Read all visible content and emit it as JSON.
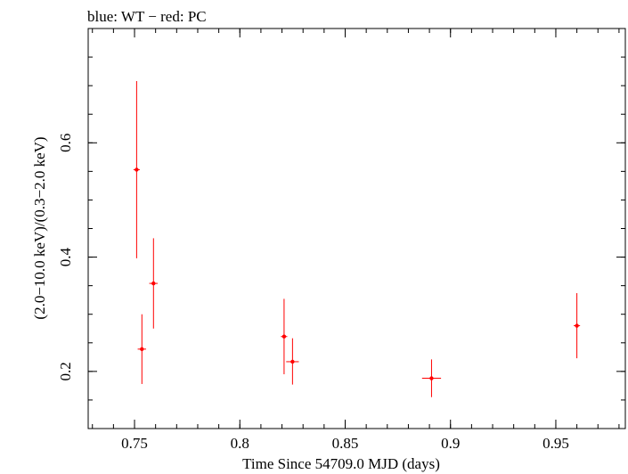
{
  "chart_data": {
    "type": "scatter",
    "title": "blue: WT − red: PC",
    "xlabel": "Time Since 54709.0 MJD (days)",
    "ylabel": "(2.0−10.0 keV)/(0.3−2.0 keV)",
    "xlim": [
      0.728,
      0.983
    ],
    "ylim": [
      0.1,
      0.8
    ],
    "x_ticks": [
      {
        "value": 0.75,
        "label": "0.75"
      },
      {
        "value": 0.8,
        "label": "0.8"
      },
      {
        "value": 0.85,
        "label": "0.85"
      },
      {
        "value": 0.9,
        "label": "0.9"
      },
      {
        "value": 0.95,
        "label": "0.95"
      }
    ],
    "y_ticks": [
      {
        "value": 0.2,
        "label": "0.2"
      },
      {
        "value": 0.4,
        "label": "0.4"
      },
      {
        "value": 0.6,
        "label": "0.6"
      }
    ],
    "x_minor_step": 0.01,
    "y_minor_step": 0.05,
    "series": [
      {
        "name": "PC",
        "color": "#ff0000",
        "points": [
          {
            "x": 0.751,
            "y": 0.553,
            "xerr": 0.0015,
            "ylo": 0.398,
            "yhi": 0.708
          },
          {
            "x": 0.7535,
            "y": 0.239,
            "xerr": 0.002,
            "ylo": 0.178,
            "yhi": 0.3
          },
          {
            "x": 0.759,
            "y": 0.354,
            "xerr": 0.002,
            "ylo": 0.275,
            "yhi": 0.433
          },
          {
            "x": 0.821,
            "y": 0.261,
            "xerr": 0.0015,
            "ylo": 0.195,
            "yhi": 0.327
          },
          {
            "x": 0.825,
            "y": 0.217,
            "xerr": 0.003,
            "ylo": 0.177,
            "yhi": 0.258
          },
          {
            "x": 0.891,
            "y": 0.188,
            "xerr": 0.0045,
            "ylo": 0.155,
            "yhi": 0.221
          },
          {
            "x": 0.96,
            "y": 0.28,
            "xerr": 0.0015,
            "ylo": 0.223,
            "yhi": 0.337
          }
        ]
      },
      {
        "name": "WT",
        "color": "#0000ff",
        "points": []
      }
    ]
  }
}
